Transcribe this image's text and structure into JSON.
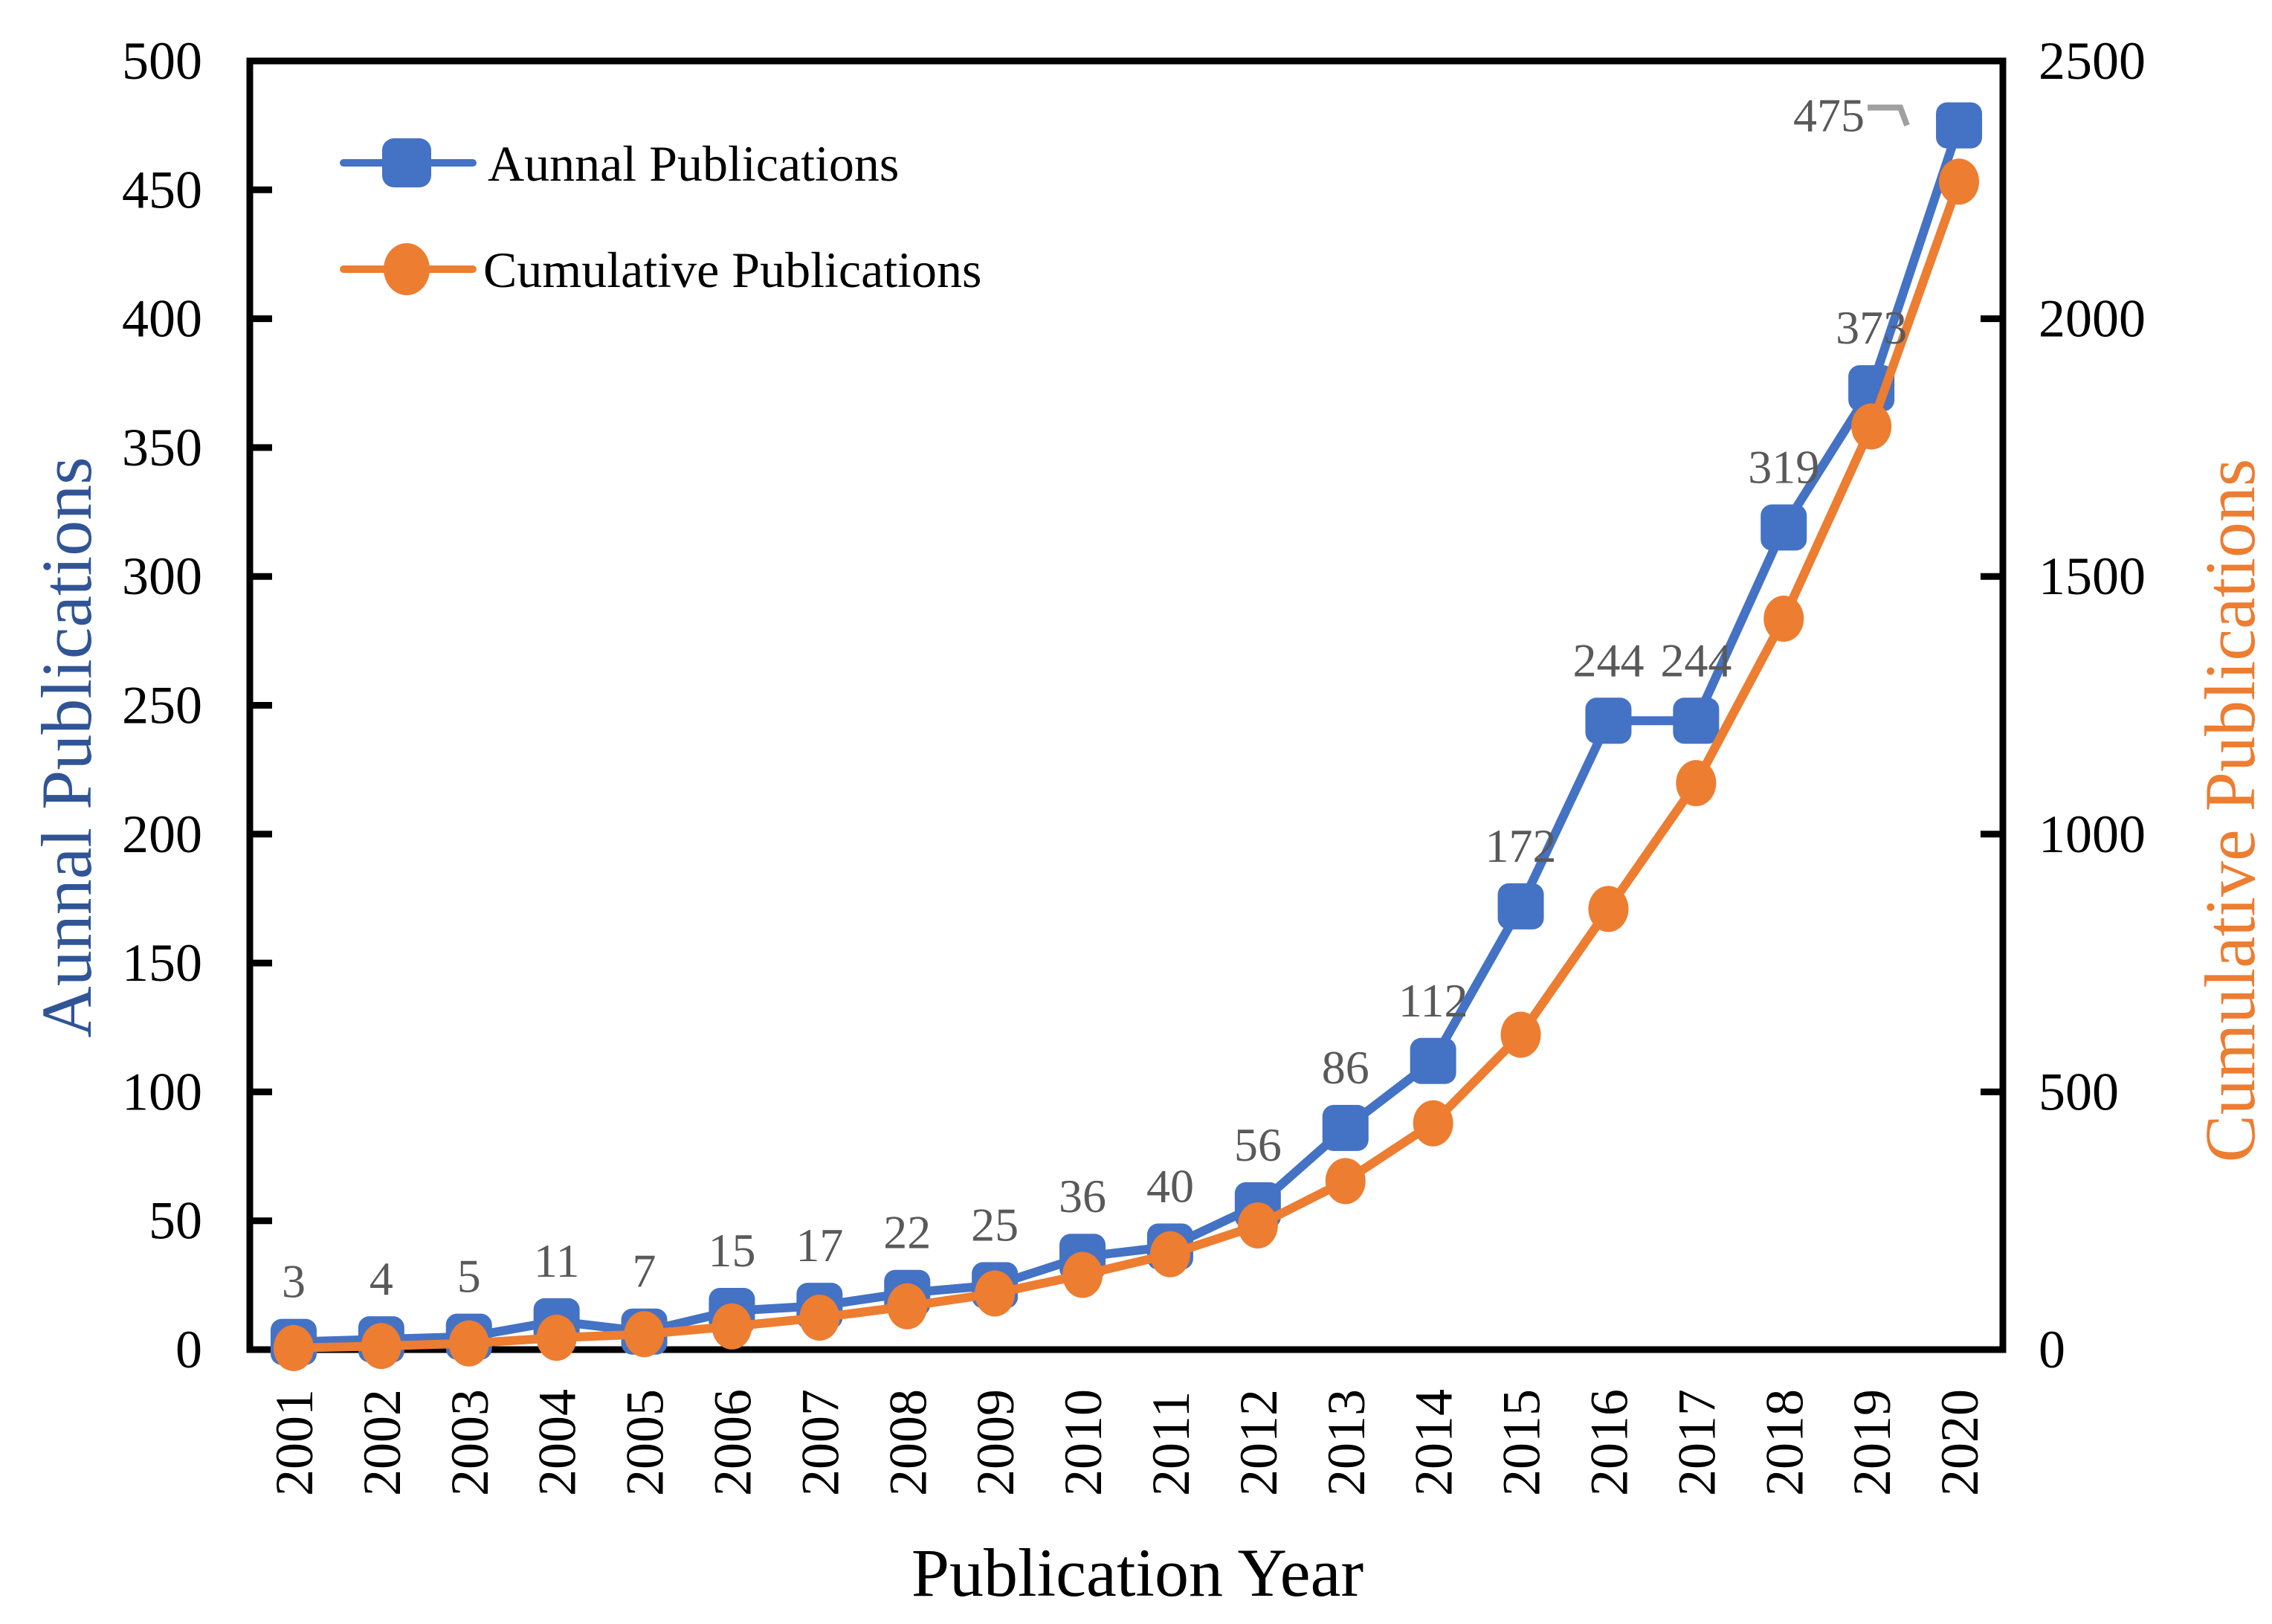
{
  "figure": {
    "background": "#ffffff",
    "frame_color": "#000000"
  },
  "chart_data": {
    "type": "line",
    "grid": "off",
    "legend_position": "top-left-inside",
    "x_axis": {
      "title": "Publication Year",
      "categories": [
        "2001",
        "2002",
        "2003",
        "2004",
        "2005",
        "2006",
        "2007",
        "2008",
        "2009",
        "2010",
        "2011",
        "2012",
        "2013",
        "2014",
        "2015",
        "2016",
        "2017",
        "2018",
        "2019",
        "2020"
      ]
    },
    "left_axis": {
      "title": "Aunnal Publications",
      "title_color": "#305496",
      "min": 0,
      "max": 500,
      "step": 50,
      "ticks": [
        0,
        50,
        100,
        150,
        200,
        250,
        300,
        350,
        400,
        450,
        500
      ]
    },
    "right_axis": {
      "title": "Cumulative Publications",
      "title_color": "#ED7D31",
      "min": 0,
      "max": 2500,
      "step": 500,
      "ticks": [
        0,
        500,
        1000,
        1500,
        2000,
        2500
      ]
    },
    "series": [
      {
        "name": "Aunnal Publications",
        "axis": "left",
        "marker": "square",
        "color": "#4472C4",
        "values": [
          3,
          4,
          5,
          11,
          7,
          15,
          17,
          22,
          25,
          36,
          40,
          56,
          86,
          112,
          172,
          244,
          244,
          319,
          373,
          475
        ],
        "show_data_labels": true
      },
      {
        "name": "Cumulative Publications",
        "axis": "right",
        "marker": "circle",
        "color": "#ED7D31",
        "values": [
          3,
          7,
          12,
          23,
          30,
          45,
          62,
          84,
          109,
          145,
          185,
          241,
          327,
          439,
          611,
          855,
          1099,
          1418,
          1791,
          2266
        ],
        "show_data_labels": false
      }
    ],
    "data_labels": {
      "color": "#595959",
      "leader_color": "#A0A0A0",
      "default_offset": {
        "dx": 0,
        "dy": -60
      },
      "overrides": {
        "19": {
          "dx": -127,
          "dy": 8,
          "anchor": "end",
          "leader": [
            [
              -123,
              -24
            ],
            [
              -79,
              -24
            ],
            [
              -70,
              0
            ]
          ]
        }
      }
    }
  }
}
